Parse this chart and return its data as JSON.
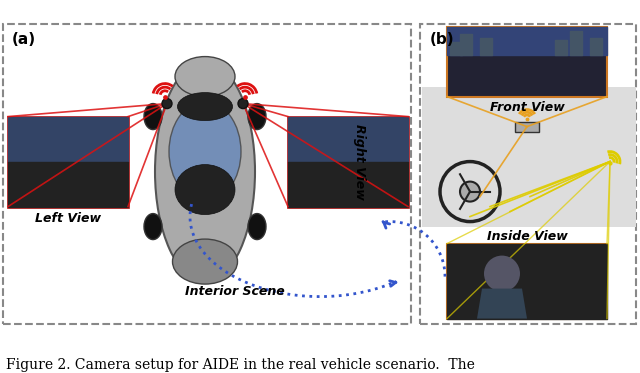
{
  "title": "Figure 2. Camera setup for AIDE in the real vehicle scenario.  The",
  "panel_a_label": "(a)",
  "panel_b_label": "(b)",
  "left_view_label": "Left View",
  "right_view_label": "Right View",
  "interior_scene_label": "Interior Scene",
  "front_view_label": "Front View",
  "inside_view_label": "Inside View",
  "fig_width": 6.4,
  "fig_height": 3.73,
  "dpi": 100,
  "border_color": "#555555",
  "border_linestyle": "--",
  "red_line_color": "#dd1111",
  "blue_dot_color": "#3355cc",
  "orange_line_color": "#e8a020",
  "yellow_line_color": "#ddcc00",
  "wifi_color_red": "#dd1111",
  "wifi_color_orange": "#e8a020",
  "wifi_color_yellow": "#ddcc00",
  "background": "#ffffff",
  "caption_text": "Figure 2. Camera setup for AIDE in the real vehicle scenario.  The"
}
